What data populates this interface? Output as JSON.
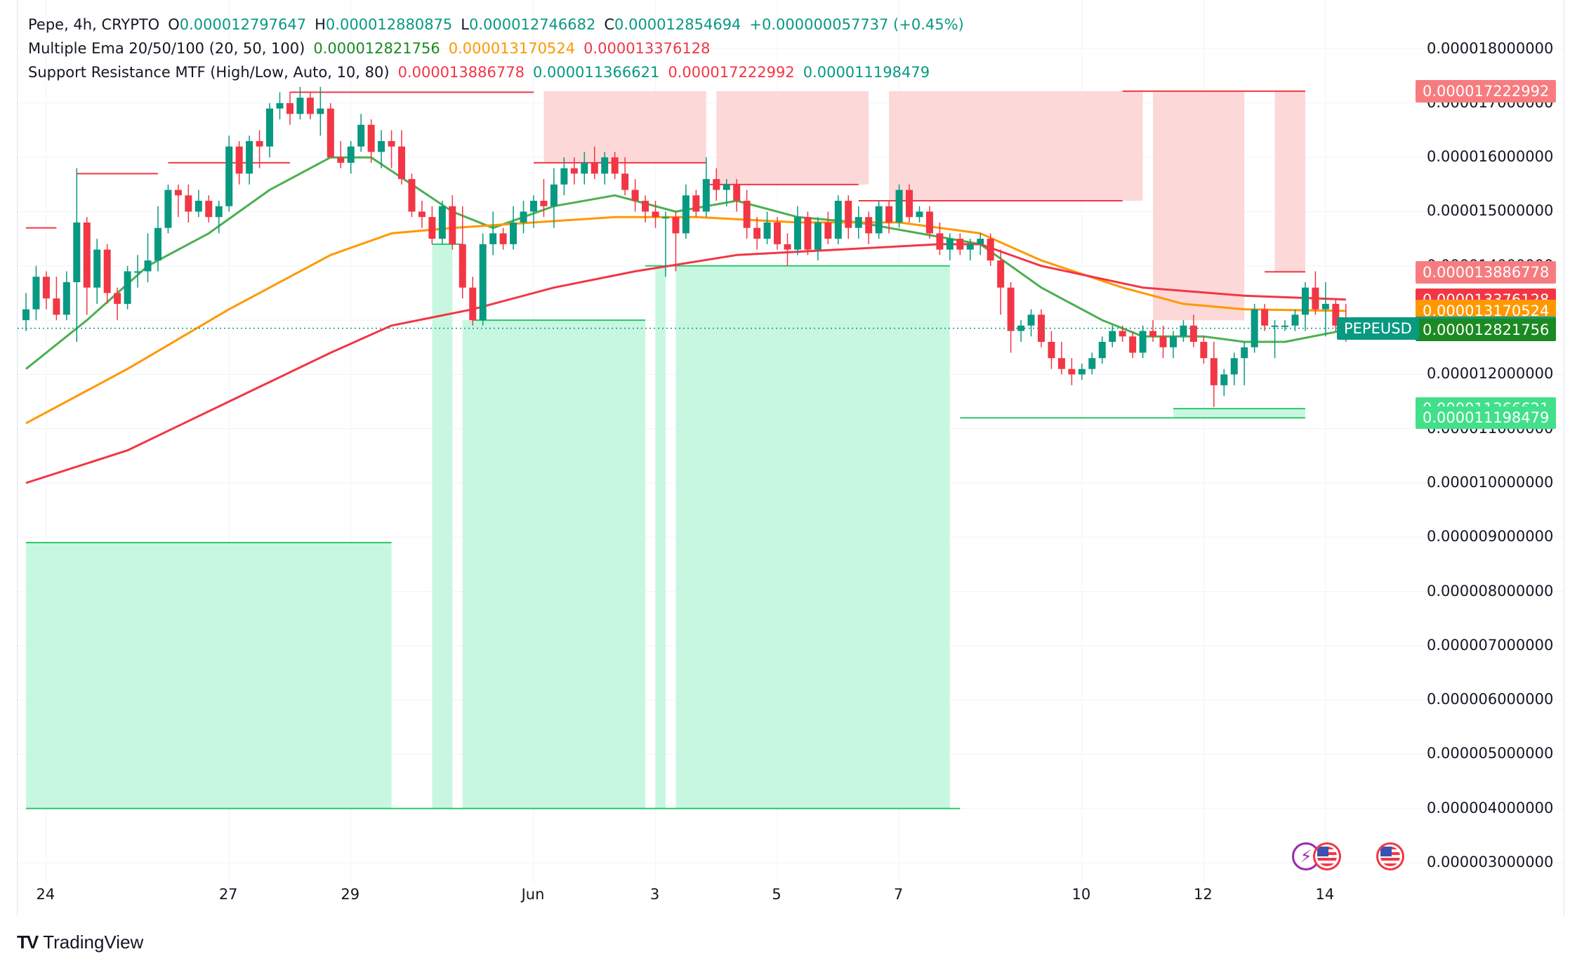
{
  "legend": {
    "symbol_line": {
      "title": "Pepe, 4h, CRYPTO",
      "o_label": "O",
      "o_value": "0.000012797647",
      "h_label": "H",
      "h_value": "0.000012880875",
      "l_label": "L",
      "l_value": "0.000012746682",
      "c_label": "C",
      "c_value": "0.000012854694",
      "change": "+0.000000057737 (+0.45%)"
    },
    "ema_line": {
      "name": "Multiple Ema 20/50/100 (20, 50, 100)",
      "values": [
        "0.000012821756",
        "0.000013170524",
        "0.000013376128"
      ]
    },
    "sr_line": {
      "name": "Support Resistance MTF (High/Low, Auto, 10, 80)",
      "values": [
        "0.000013886778",
        "0.000011366621",
        "0.000017222992",
        "0.000011198479"
      ]
    }
  },
  "colors": {
    "up": "#089981",
    "down": "#f23645",
    "ema20": "#4caf50",
    "ema50": "#ff9800",
    "ema100": "#f23645",
    "resistance_fill": "#fdd8d8",
    "support_fill": "#c8f7e1",
    "resistance_line": "#f23645",
    "support_line": "#2dc76d",
    "green_text": "#089981",
    "orange_text": "#ff9800",
    "red_text": "#f23645"
  },
  "price_axis": {
    "ticks": [
      "0.000018000000",
      "0.000017000000",
      "0.000016000000",
      "0.000015000000",
      "0.000014000000",
      "0.000013000000",
      "0.000012000000",
      "0.000011000000",
      "0.000010000000",
      "0.000009000000",
      "0.000008000000",
      "0.000007000000",
      "0.000006000000",
      "0.000005000000",
      "0.000004000000",
      "0.000003000000"
    ],
    "badges": [
      {
        "text": "0.000017222992",
        "value": 17.222992,
        "color": "#f77c80"
      },
      {
        "text": "0.000013886778",
        "value": 13.886778,
        "color": "#f77c80"
      },
      {
        "text": "0.000013376128",
        "value": 13.376128,
        "color": "#f23645"
      },
      {
        "text": "0.000013170524",
        "value": 13.170524,
        "color": "#ff9800"
      },
      {
        "text": "0.000012854694",
        "value": 12.854694,
        "color": "#089981"
      },
      {
        "text": "0.000012821756",
        "value": 12.821756,
        "color": "#1b8a22"
      },
      {
        "text": "0.000011366621",
        "value": 11.366621,
        "color": "#42e08a"
      },
      {
        "text": "0.000011198479",
        "value": 11.198479,
        "color": "#42e08a"
      }
    ],
    "symbol_badge": "PEPEUSD"
  },
  "time_axis": {
    "ticks": [
      {
        "label": "24",
        "t": 2
      },
      {
        "label": "27",
        "t": 20
      },
      {
        "label": "29",
        "t": 32
      },
      {
        "label": "Jun",
        "t": 50
      },
      {
        "label": "3",
        "t": 62
      },
      {
        "label": "5",
        "t": 74
      },
      {
        "label": "7",
        "t": 86
      },
      {
        "label": "10",
        "t": 104
      },
      {
        "label": "12",
        "t": 116
      },
      {
        "label": "14",
        "t": 128
      }
    ]
  },
  "chart_data": {
    "type": "candlestick",
    "symbol": "PEPEUSD",
    "interval": "4h",
    "unit_scale": "values ×1e-6 USD",
    "ylim": [
      2.6,
      18.9
    ],
    "ohlc": [
      [
        13.0,
        13.5,
        12.8,
        13.2
      ],
      [
        13.2,
        14.0,
        13.0,
        13.8
      ],
      [
        13.8,
        13.9,
        13.2,
        13.4
      ],
      [
        13.4,
        13.8,
        13.0,
        13.1
      ],
      [
        13.1,
        13.9,
        13.0,
        13.7
      ],
      [
        13.7,
        15.8,
        12.6,
        14.8
      ],
      [
        14.8,
        14.9,
        13.1,
        13.6
      ],
      [
        13.6,
        14.5,
        13.3,
        14.3
      ],
      [
        14.3,
        14.4,
        13.3,
        13.5
      ],
      [
        13.5,
        13.6,
        13.0,
        13.3
      ],
      [
        13.3,
        14.0,
        13.2,
        13.9
      ],
      [
        13.9,
        14.2,
        13.6,
        13.9
      ],
      [
        13.9,
        14.6,
        13.7,
        14.1
      ],
      [
        14.1,
        15.1,
        13.9,
        14.7
      ],
      [
        14.7,
        15.5,
        14.6,
        15.4
      ],
      [
        15.4,
        15.5,
        14.9,
        15.3
      ],
      [
        15.3,
        15.5,
        14.8,
        15.0
      ],
      [
        15.0,
        15.4,
        14.9,
        15.2
      ],
      [
        15.2,
        15.3,
        14.8,
        14.9
      ],
      [
        14.9,
        15.2,
        14.6,
        15.1
      ],
      [
        15.1,
        16.4,
        15.0,
        16.2
      ],
      [
        16.2,
        16.3,
        15.5,
        15.7
      ],
      [
        15.7,
        16.4,
        15.5,
        16.3
      ],
      [
        16.3,
        16.5,
        15.8,
        16.2
      ],
      [
        16.2,
        17.0,
        16.0,
        16.9
      ],
      [
        16.9,
        17.2,
        16.7,
        17.0
      ],
      [
        17.0,
        17.2,
        16.6,
        16.8
      ],
      [
        16.8,
        17.3,
        16.7,
        17.1
      ],
      [
        17.1,
        17.2,
        16.7,
        16.8
      ],
      [
        16.8,
        17.3,
        16.4,
        16.9
      ],
      [
        16.9,
        17.0,
        16.0,
        16.0
      ],
      [
        16.0,
        16.3,
        15.8,
        15.9
      ],
      [
        15.9,
        16.3,
        15.7,
        16.2
      ],
      [
        16.2,
        16.8,
        16.1,
        16.6
      ],
      [
        16.6,
        16.7,
        15.9,
        16.1
      ],
      [
        16.1,
        16.5,
        15.8,
        16.3
      ],
      [
        16.3,
        16.5,
        15.8,
        16.2
      ],
      [
        16.2,
        16.5,
        15.5,
        15.6
      ],
      [
        15.6,
        15.7,
        14.9,
        15.0
      ],
      [
        15.0,
        15.2,
        14.7,
        14.9
      ],
      [
        14.9,
        15.1,
        14.4,
        14.5
      ],
      [
        14.5,
        15.2,
        14.4,
        15.1
      ],
      [
        15.1,
        15.3,
        14.3,
        14.4
      ],
      [
        14.4,
        15.1,
        13.4,
        13.6
      ],
      [
        13.6,
        13.8,
        12.9,
        13.0
      ],
      [
        13.0,
        14.6,
        12.9,
        14.4
      ],
      [
        14.4,
        15.0,
        14.2,
        14.6
      ],
      [
        14.6,
        14.7,
        14.3,
        14.4
      ],
      [
        14.4,
        15.1,
        14.3,
        14.8
      ],
      [
        14.8,
        15.2,
        14.6,
        15.0
      ],
      [
        15.0,
        15.3,
        14.7,
        15.2
      ],
      [
        15.2,
        15.6,
        14.9,
        15.1
      ],
      [
        15.1,
        15.8,
        14.7,
        15.5
      ],
      [
        15.5,
        16.0,
        15.3,
        15.8
      ],
      [
        15.8,
        16.0,
        15.5,
        15.7
      ],
      [
        15.7,
        16.1,
        15.5,
        15.9
      ],
      [
        15.9,
        16.2,
        15.6,
        15.7
      ],
      [
        15.7,
        16.1,
        15.5,
        16.0
      ],
      [
        16.0,
        16.1,
        15.6,
        15.7
      ],
      [
        15.7,
        16.0,
        15.3,
        15.4
      ],
      [
        15.4,
        15.6,
        15.0,
        15.2
      ],
      [
        15.2,
        15.3,
        14.8,
        15.0
      ],
      [
        15.0,
        15.2,
        14.7,
        14.9
      ],
      [
        14.9,
        15.0,
        13.8,
        14.9
      ],
      [
        14.9,
        15.0,
        13.9,
        14.6
      ],
      [
        14.6,
        15.5,
        14.5,
        15.3
      ],
      [
        15.3,
        15.4,
        14.9,
        15.0
      ],
      [
        15.0,
        16.0,
        14.9,
        15.6
      ],
      [
        15.6,
        15.8,
        15.2,
        15.4
      ],
      [
        15.4,
        15.6,
        15.1,
        15.5
      ],
      [
        15.5,
        15.6,
        15.0,
        15.2
      ],
      [
        15.2,
        15.4,
        14.5,
        14.7
      ],
      [
        14.7,
        14.9,
        14.3,
        14.5
      ],
      [
        14.5,
        15.0,
        14.4,
        14.8
      ],
      [
        14.8,
        14.9,
        14.3,
        14.4
      ],
      [
        14.4,
        14.6,
        14.0,
        14.3
      ],
      [
        14.3,
        15.1,
        14.2,
        14.9
      ],
      [
        14.9,
        15.0,
        14.2,
        14.3
      ],
      [
        14.3,
        14.9,
        14.1,
        14.8
      ],
      [
        14.8,
        15.0,
        14.4,
        14.5
      ],
      [
        14.5,
        15.3,
        14.4,
        15.2
      ],
      [
        15.2,
        15.3,
        14.5,
        14.7
      ],
      [
        14.7,
        15.1,
        14.5,
        14.9
      ],
      [
        14.9,
        15.0,
        14.4,
        14.6
      ],
      [
        14.6,
        15.2,
        14.5,
        15.1
      ],
      [
        15.1,
        15.2,
        14.6,
        14.8
      ],
      [
        14.8,
        15.5,
        14.7,
        15.4
      ],
      [
        15.4,
        15.5,
        14.8,
        14.9
      ],
      [
        14.9,
        15.1,
        14.8,
        15.0
      ],
      [
        15.0,
        15.1,
        14.5,
        14.6
      ],
      [
        14.6,
        14.8,
        14.2,
        14.3
      ],
      [
        14.3,
        14.6,
        14.1,
        14.5
      ],
      [
        14.5,
        14.6,
        14.2,
        14.3
      ],
      [
        14.3,
        14.5,
        14.1,
        14.4
      ],
      [
        14.4,
        14.6,
        14.2,
        14.5
      ],
      [
        14.5,
        14.6,
        14.0,
        14.1
      ],
      [
        14.1,
        14.3,
        13.1,
        13.6
      ],
      [
        13.6,
        13.7,
        12.4,
        12.8
      ],
      [
        12.8,
        13.0,
        12.6,
        12.9
      ],
      [
        12.9,
        13.2,
        12.7,
        13.1
      ],
      [
        13.1,
        13.2,
        12.5,
        12.6
      ],
      [
        12.6,
        12.8,
        12.1,
        12.3
      ],
      [
        12.3,
        12.6,
        12.0,
        12.1
      ],
      [
        12.1,
        12.3,
        11.8,
        12.0
      ],
      [
        12.0,
        12.2,
        11.9,
        12.1
      ],
      [
        12.1,
        12.4,
        12.0,
        12.3
      ],
      [
        12.3,
        12.7,
        12.2,
        12.6
      ],
      [
        12.6,
        12.9,
        12.5,
        12.8
      ],
      [
        12.8,
        12.9,
        12.6,
        12.7
      ],
      [
        12.7,
        12.8,
        12.3,
        12.4
      ],
      [
        12.4,
        12.9,
        12.3,
        12.8
      ],
      [
        12.8,
        13.0,
        12.6,
        12.7
      ],
      [
        12.7,
        12.9,
        12.3,
        12.5
      ],
      [
        12.5,
        12.8,
        12.3,
        12.7
      ],
      [
        12.7,
        13.0,
        12.6,
        12.9
      ],
      [
        12.9,
        13.1,
        12.5,
        12.6
      ],
      [
        12.6,
        12.7,
        12.2,
        12.3
      ],
      [
        12.3,
        12.6,
        11.4,
        11.8
      ],
      [
        11.8,
        12.1,
        11.6,
        12.0
      ],
      [
        12.0,
        12.4,
        11.8,
        12.3
      ],
      [
        12.3,
        12.6,
        11.8,
        12.5
      ],
      [
        12.5,
        13.3,
        12.4,
        13.2
      ],
      [
        13.2,
        13.3,
        12.8,
        12.9
      ],
      [
        12.9,
        13.0,
        12.3,
        12.9
      ],
      [
        12.9,
        13.0,
        12.8,
        12.9
      ],
      [
        12.9,
        13.2,
        12.8,
        13.1
      ],
      [
        13.1,
        13.7,
        12.8,
        13.6
      ],
      [
        13.6,
        13.9,
        13.1,
        13.2
      ],
      [
        13.2,
        13.7,
        12.7,
        13.3
      ],
      [
        13.3,
        13.4,
        12.8,
        12.9
      ],
      [
        12.9,
        13.3,
        12.6,
        12.8
      ],
      [
        12.8,
        12.9,
        12.7,
        12.85
      ]
    ],
    "series": [
      {
        "name": "Multiple Ema 20/50/100",
        "period": 20,
        "color": "#4caf50",
        "points": [
          [
            0,
            12.1
          ],
          [
            6,
            13.0
          ],
          [
            12,
            14.0
          ],
          [
            18,
            14.6
          ],
          [
            24,
            15.4
          ],
          [
            30,
            16.0
          ],
          [
            34,
            16.0
          ],
          [
            38,
            15.5
          ],
          [
            42,
            15.0
          ],
          [
            46,
            14.7
          ],
          [
            52,
            15.1
          ],
          [
            58,
            15.3
          ],
          [
            64,
            15.0
          ],
          [
            70,
            15.2
          ],
          [
            76,
            14.9
          ],
          [
            82,
            14.8
          ],
          [
            88,
            14.6
          ],
          [
            94,
            14.4
          ],
          [
            100,
            13.6
          ],
          [
            106,
            13.0
          ],
          [
            110,
            12.7
          ],
          [
            116,
            12.7
          ],
          [
            120,
            12.6
          ],
          [
            124,
            12.6
          ],
          [
            130,
            12.82
          ]
        ]
      },
      {
        "name": "Multiple Ema 20/50/100",
        "period": 50,
        "color": "#ff9800",
        "points": [
          [
            0,
            11.1
          ],
          [
            10,
            12.1
          ],
          [
            20,
            13.2
          ],
          [
            30,
            14.2
          ],
          [
            36,
            14.6
          ],
          [
            42,
            14.7
          ],
          [
            50,
            14.8
          ],
          [
            58,
            14.9
          ],
          [
            66,
            14.9
          ],
          [
            76,
            14.8
          ],
          [
            86,
            14.8
          ],
          [
            94,
            14.6
          ],
          [
            100,
            14.1
          ],
          [
            108,
            13.6
          ],
          [
            114,
            13.3
          ],
          [
            120,
            13.2
          ],
          [
            130,
            13.17
          ]
        ]
      },
      {
        "name": "Multiple Ema 20/50/100",
        "period": 100,
        "color": "#f23645",
        "points": [
          [
            0,
            10.0
          ],
          [
            10,
            10.6
          ],
          [
            20,
            11.5
          ],
          [
            30,
            12.4
          ],
          [
            36,
            12.9
          ],
          [
            44,
            13.2
          ],
          [
            52,
            13.6
          ],
          [
            60,
            13.9
          ],
          [
            70,
            14.2
          ],
          [
            80,
            14.3
          ],
          [
            90,
            14.4
          ],
          [
            94,
            14.4
          ],
          [
            100,
            14.0
          ],
          [
            110,
            13.6
          ],
          [
            120,
            13.45
          ],
          [
            130,
            13.38
          ]
        ]
      }
    ],
    "levels": {
      "resistance_lines": [
        {
          "from": 0,
          "to": 3,
          "value": 14.7
        },
        {
          "from": 5,
          "to": 13,
          "value": 15.7
        },
        {
          "from": 14,
          "to": 26,
          "value": 15.9
        },
        {
          "from": 26,
          "to": 50,
          "value": 17.2
        },
        {
          "from": 50,
          "to": 67,
          "value": 15.9
        },
        {
          "from": 67,
          "to": 82,
          "value": 15.5
        },
        {
          "from": 82,
          "to": 108,
          "value": 15.2
        },
        {
          "from": 122,
          "to": 126,
          "value": 13.89
        },
        {
          "from": 108,
          "to": 126,
          "value": 17.22
        }
      ],
      "resistance_zones": [
        {
          "from": 51,
          "to": 67,
          "top": 17.22,
          "bottom": 15.9
        },
        {
          "from": 68,
          "to": 83,
          "top": 17.22,
          "bottom": 15.5
        },
        {
          "from": 85,
          "to": 110,
          "top": 17.22,
          "bottom": 15.2
        },
        {
          "from": 111,
          "to": 120,
          "top": 17.22,
          "bottom": 13.0
        },
        {
          "from": 123,
          "to": 126,
          "top": 17.22,
          "bottom": 13.89
        }
      ],
      "support_lines": [
        {
          "from": 0,
          "to": 36,
          "value": 8.9
        },
        {
          "from": 40,
          "to": 43,
          "value": 14.4
        },
        {
          "from": 44,
          "to": 61,
          "value": 13.0
        },
        {
          "from": 61,
          "to": 91,
          "value": 14.0
        },
        {
          "from": 0,
          "to": 92,
          "value": 4.0
        },
        {
          "from": 92,
          "to": 126,
          "value": 11.2
        },
        {
          "from": 113,
          "to": 126,
          "value": 11.37
        }
      ],
      "support_zones": [
        {
          "from": 0,
          "to": 36,
          "top": 8.9,
          "bottom": 4.0
        },
        {
          "from": 40,
          "to": 42,
          "top": 14.4,
          "bottom": 4.0
        },
        {
          "from": 43,
          "to": 61,
          "top": 13.0,
          "bottom": 4.0
        },
        {
          "from": 62,
          "to": 63,
          "top": 14.0,
          "bottom": 4.0
        },
        {
          "from": 64,
          "to": 91,
          "top": 14.0,
          "bottom": 4.0
        },
        {
          "from": 113,
          "to": 126,
          "top": 11.37,
          "bottom": 11.2
        }
      ]
    }
  }
}
